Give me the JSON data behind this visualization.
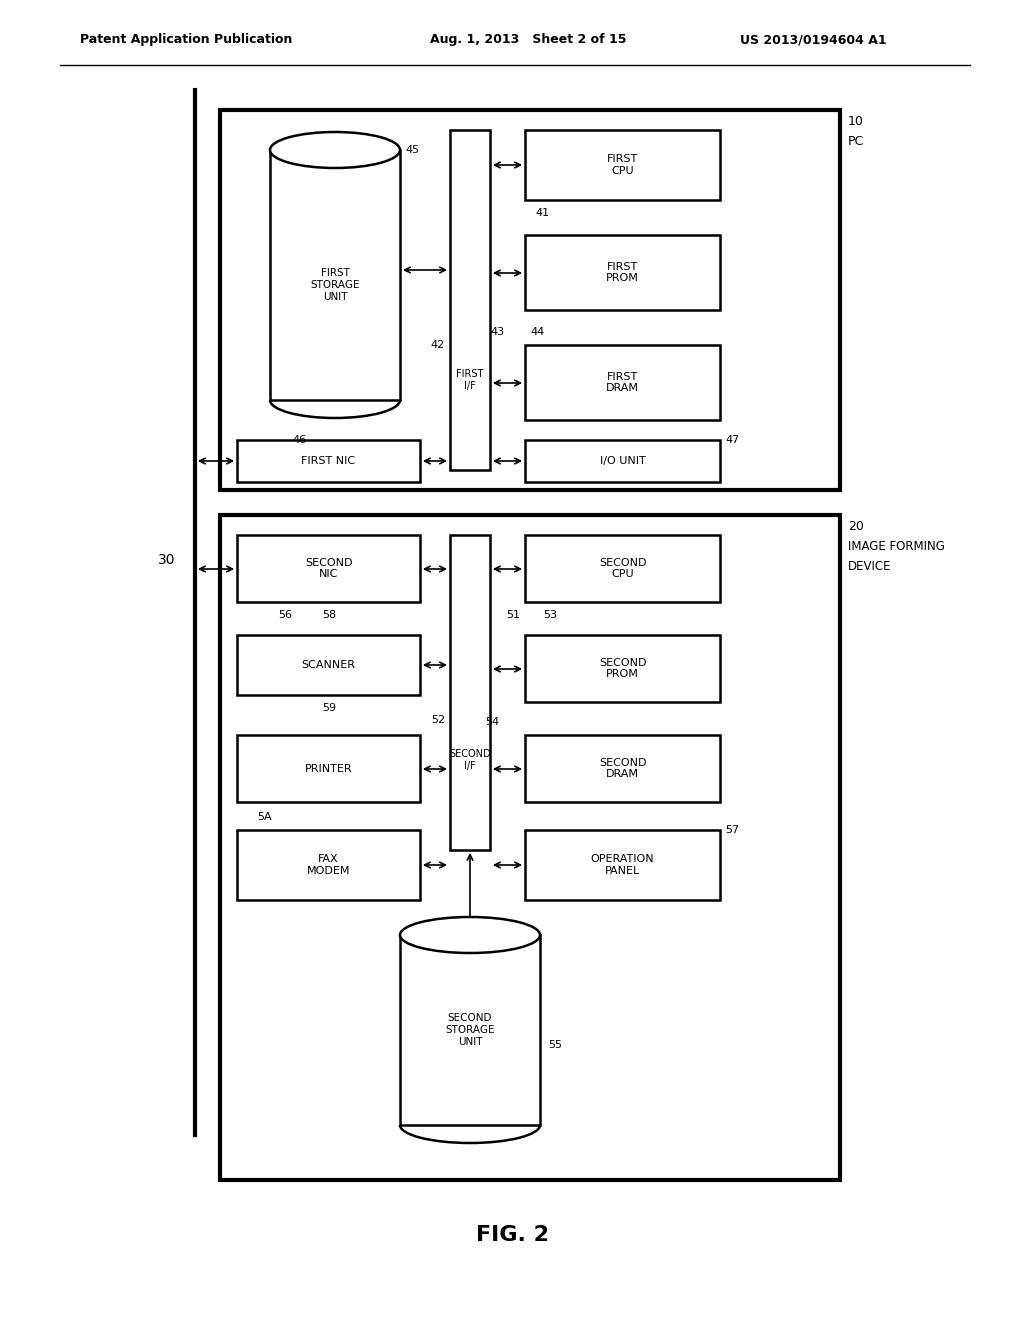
{
  "header_left": "Patent Application Publication",
  "header_mid": "Aug. 1, 2013   Sheet 2 of 15",
  "header_right": "US 2013/0194604 A1",
  "fig_label": "FIG. 2",
  "bg_color": "#ffffff",
  "text_color": "#000000"
}
